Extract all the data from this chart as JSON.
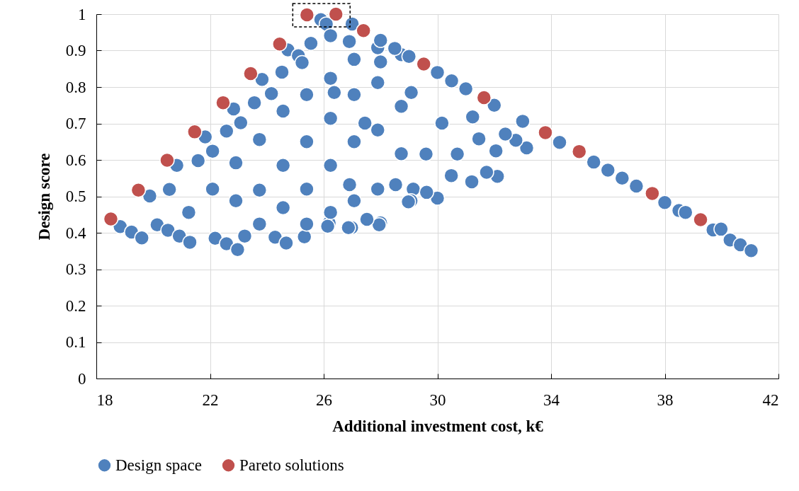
{
  "chart_data": {
    "type": "scatter",
    "xlabel": "Additional investment cost, k€",
    "ylabel": "Design score",
    "xlim": [
      18,
      42
    ],
    "xticks": [
      18,
      22,
      26,
      30,
      34,
      38,
      42
    ],
    "ylim": [
      0,
      1
    ],
    "yticks": [
      {
        "value": 0,
        "label": "0"
      },
      0.1,
      0.2,
      0.3,
      0.4,
      0.5,
      0.6,
      0.7,
      0.8,
      0.9,
      {
        "value": 1,
        "label": "1"
      }
    ],
    "grid": true,
    "legend": "bottom",
    "marker": "circle",
    "series": [
      {
        "name": "Design space",
        "color": "#4f81bd",
        "x": [
          18.84,
          19.24,
          19.6,
          20.14,
          20.52,
          20.92,
          21.29,
          22.18,
          22.58,
          22.97,
          23.22,
          24.29,
          24.68,
          25.32,
          26.19,
          26.98,
          28.0,
          20.57,
          21.58,
          22.58,
          23.56,
          24.53,
          25.55,
          25.9,
          26.09,
          19.88,
          20.83,
          21.83,
          22.83,
          23.83,
          24.74,
          25.11,
          22.09,
          23.08,
          24.16,
          25.24,
          26.24,
          26.9,
          22.91,
          23.74,
          24.57,
          25.4,
          26.24,
          27.07,
          27.9,
          28.73,
          23.74,
          24.57,
          25.4,
          26.24,
          27.07,
          27.9,
          28.73,
          24.57,
          25.4,
          26.24,
          27.07,
          27.9,
          28.73,
          29.15,
          29.07,
          26.24,
          27.07,
          27.9,
          21.25,
          22.09,
          22.91,
          23.74,
          25.4,
          33.14,
          32.76,
          32.11,
          31.73,
          30.0,
          29.62,
          28.98,
          27.95,
          27.52,
          26.87,
          26.14,
          31.21,
          30.49,
          32.06,
          32.39,
          31.46,
          30.7,
          30.16,
          31.24,
          29.08,
          28.0,
          29.6,
          28.53,
          26.91,
          27.45,
          26.37,
          27.0,
          28.0,
          28.5,
          29.0,
          30.0,
          30.5,
          31.0,
          32.0,
          33.0,
          34.3,
          35.5,
          36.0,
          36.5,
          37.0,
          38.0,
          38.5,
          38.73,
          39.7,
          39.98,
          40.3,
          40.66,
          41.04
        ],
        "values": [
          0.417,
          0.402,
          0.386,
          0.422,
          0.407,
          0.391,
          0.374,
          0.385,
          0.37,
          0.354,
          0.391,
          0.388,
          0.372,
          0.389,
          0.427,
          0.414,
          0.427,
          0.519,
          0.598,
          0.679,
          0.757,
          0.841,
          0.92,
          0.985,
          0.973,
          0.501,
          0.585,
          0.663,
          0.74,
          0.821,
          0.902,
          0.886,
          0.624,
          0.702,
          0.782,
          0.867,
          0.941,
          0.925,
          0.592,
          0.656,
          0.734,
          0.779,
          0.824,
          0.876,
          0.908,
          0.889,
          0.517,
          0.585,
          0.65,
          0.714,
          0.779,
          0.812,
          0.747,
          0.469,
          0.52,
          0.585,
          0.65,
          0.682,
          0.617,
          0.52,
          0.488,
          0.456,
          0.488,
          0.52,
          0.456,
          0.52,
          0.488,
          0.424,
          0.424,
          0.633,
          0.654,
          0.555,
          0.566,
          0.495,
          0.511,
          0.485,
          0.422,
          0.437,
          0.414,
          0.418,
          0.54,
          0.557,
          0.625,
          0.671,
          0.658,
          0.616,
          0.701,
          0.718,
          0.785,
          0.869,
          0.616,
          0.532,
          0.532,
          0.701,
          0.785,
          0.973,
          0.928,
          0.906,
          0.884,
          0.84,
          0.817,
          0.795,
          0.75,
          0.706,
          0.648,
          0.594,
          0.572,
          0.55,
          0.528,
          0.483,
          0.461,
          0.456,
          0.408,
          0.41,
          0.38,
          0.367,
          0.351
        ]
      },
      {
        "name": "Pareto solutions",
        "color": "#c0504d",
        "x": [
          18.51,
          19.48,
          20.49,
          21.46,
          22.46,
          23.43,
          24.45,
          25.41,
          26.43,
          27.4,
          29.52,
          31.64,
          33.8,
          34.99,
          37.56,
          39.26
        ],
        "values": [
          0.438,
          0.517,
          0.599,
          0.677,
          0.757,
          0.837,
          0.918,
          0.998,
          1.0,
          0.955,
          0.863,
          0.771,
          0.675,
          0.623,
          0.508,
          0.436
        ]
      }
    ]
  }
}
